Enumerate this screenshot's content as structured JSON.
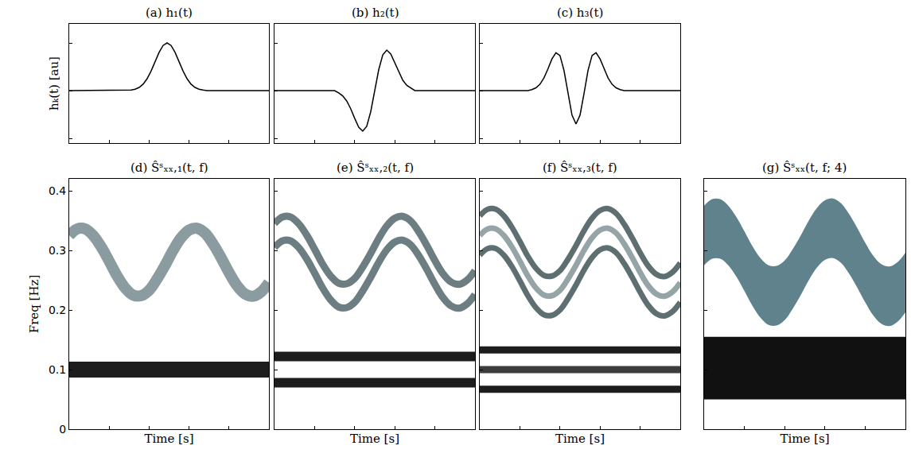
{
  "chart_data": [
    {
      "type": "line",
      "title": "(a) h₁(t)",
      "ylabel": "hₖ(t) [au]",
      "color": "#000000",
      "x": [
        0,
        29,
        31,
        33,
        35,
        37,
        39,
        41,
        43,
        45,
        47,
        49,
        51,
        53,
        55,
        57,
        59,
        61,
        63,
        65,
        67,
        69,
        100
      ],
      "values": [
        0,
        0,
        0.011,
        0.029,
        0.066,
        0.135,
        0.249,
        0.411,
        0.607,
        0.801,
        0.946,
        1,
        0.946,
        0.801,
        0.607,
        0.411,
        0.249,
        0.135,
        0.066,
        0.029,
        0.011,
        0,
        0
      ],
      "xlim": [
        0,
        100
      ],
      "ylim": [
        -1.1,
        1.4
      ],
      "xticks": [
        20,
        40,
        60,
        80
      ],
      "yticks": [
        -1,
        0,
        1
      ],
      "tick_labels": false,
      "grid": false
    },
    {
      "type": "line",
      "title": "(b) h₂(t)",
      "color": "#000000",
      "x": [
        0,
        30,
        32,
        34,
        36,
        38,
        40,
        42,
        44,
        46,
        48,
        50,
        52,
        54,
        56,
        58,
        60,
        62,
        64,
        66,
        68,
        70,
        100
      ],
      "values": [
        0,
        0,
        -0.047,
        -0.109,
        -0.216,
        -0.379,
        -0.581,
        -0.767,
        -0.849,
        -0.748,
        -0.441,
        0,
        0.441,
        0.748,
        0.849,
        0.767,
        0.581,
        0.379,
        0.216,
        0.109,
        0.047,
        0,
        0
      ],
      "xlim": [
        0,
        100
      ],
      "ylim": [
        -1.1,
        1.4
      ],
      "xticks": [
        20,
        40,
        60,
        80
      ],
      "yticks": [
        -1,
        0,
        1
      ],
      "tick_labels": false,
      "grid": false
    },
    {
      "type": "line",
      "title": "(c) h₃(t)",
      "color": "#000000",
      "x": [
        0,
        24,
        26,
        28,
        30,
        32,
        34,
        36,
        38,
        40,
        42,
        44,
        46,
        48,
        50,
        52,
        54,
        56,
        58,
        60,
        62,
        64,
        66,
        68,
        70,
        72,
        100
      ],
      "values": [
        0,
        0,
        0.022,
        0.058,
        0.132,
        0.264,
        0.455,
        0.663,
        0.794,
        0.735,
        0.425,
        -0.062,
        -0.515,
        -0.7,
        -0.515,
        -0.062,
        0.425,
        0.735,
        0.794,
        0.663,
        0.455,
        0.264,
        0.132,
        0.058,
        0.022,
        0,
        0
      ],
      "xlim": [
        0,
        100
      ],
      "ylim": [
        -1.1,
        1.4
      ],
      "xticks": [
        20,
        40,
        60,
        80
      ],
      "yticks": [
        -1,
        0,
        1
      ],
      "tick_labels": false,
      "grid": false
    },
    {
      "type": "spectrogram",
      "title": "(d) Ŝˢₓₓ,₁(t, f)",
      "xlabel": "Time [s]",
      "ylabel": "Freq [Hz]",
      "x": [
        0,
        4,
        8,
        12,
        16,
        20,
        24,
        28,
        32,
        36,
        40,
        44,
        48,
        52,
        56,
        60,
        64,
        68,
        72,
        76,
        80,
        84,
        88,
        92,
        96,
        100
      ],
      "levels": [
        {
          "value": 0.1,
          "color": "#111111"
        }
      ],
      "ridges": [
        {
          "color": "#7d9195",
          "values": [
            0.325,
            0.336,
            0.336,
            0.325,
            0.306,
            0.282,
            0.257,
            0.237,
            0.225,
            0.224,
            0.233,
            0.252,
            0.275,
            0.3,
            0.321,
            0.334,
            0.337,
            0.329,
            0.311,
            0.288,
            0.263,
            0.241,
            0.227,
            0.223,
            0.23,
            0.246
          ]
        }
      ],
      "xlim": [
        0,
        100
      ],
      "ylim": [
        0,
        0.42
      ],
      "xticks": [
        20,
        40,
        60,
        80
      ],
      "yticks": [
        0,
        0.1,
        0.2,
        0.3,
        0.4
      ],
      "tick_labels": "y",
      "grid": false
    },
    {
      "type": "spectrogram",
      "title": "(e) Ŝˢₓₓ,₂(t, f)",
      "xlabel": "Time [s]",
      "x": [
        0,
        4,
        8,
        12,
        16,
        20,
        24,
        28,
        32,
        36,
        40,
        44,
        48,
        52,
        56,
        60,
        64,
        68,
        72,
        76,
        80,
        84,
        88,
        92,
        96,
        100
      ],
      "levels": [
        {
          "value": 0.122,
          "color": "#111111"
        },
        {
          "value": 0.078,
          "color": "#111111"
        }
      ],
      "ridges": [
        {
          "color": "#5d7075",
          "values": [
            0.345,
            0.356,
            0.356,
            0.345,
            0.326,
            0.302,
            0.277,
            0.257,
            0.245,
            0.244,
            0.253,
            0.272,
            0.295,
            0.32,
            0.341,
            0.354,
            0.357,
            0.349,
            0.331,
            0.308,
            0.283,
            0.261,
            0.247,
            0.243,
            0.25,
            0.266
          ]
        },
        {
          "color": "#5d7075",
          "values": [
            0.305,
            0.316,
            0.316,
            0.305,
            0.286,
            0.262,
            0.237,
            0.217,
            0.205,
            0.204,
            0.213,
            0.232,
            0.255,
            0.28,
            0.301,
            0.314,
            0.317,
            0.309,
            0.291,
            0.268,
            0.243,
            0.221,
            0.207,
            0.203,
            0.21,
            0.226
          ]
        }
      ],
      "xlim": [
        0,
        100
      ],
      "ylim": [
        0,
        0.42
      ],
      "xticks": [
        20,
        40,
        60,
        80
      ],
      "yticks": [
        0,
        0.1,
        0.2,
        0.3,
        0.4
      ],
      "tick_labels": false,
      "grid": false
    },
    {
      "type": "spectrogram",
      "title": "(f) Ŝˢₓₓ,₃(t, f)",
      "xlabel": "Time [s]",
      "x": [
        0,
        4,
        8,
        12,
        16,
        20,
        24,
        28,
        32,
        36,
        40,
        44,
        48,
        52,
        56,
        60,
        64,
        68,
        72,
        76,
        80,
        84,
        88,
        92,
        96,
        100
      ],
      "levels": [
        {
          "value": 0.133,
          "color": "#111111"
        },
        {
          "value": 0.1,
          "color": "#333333"
        },
        {
          "value": 0.067,
          "color": "#111111"
        }
      ],
      "ridges": [
        {
          "color": "#4d5f63",
          "values": [
            0.358,
            0.369,
            0.369,
            0.358,
            0.339,
            0.315,
            0.29,
            0.27,
            0.258,
            0.257,
            0.266,
            0.285,
            0.308,
            0.333,
            0.354,
            0.367,
            0.37,
            0.362,
            0.344,
            0.321,
            0.296,
            0.274,
            0.26,
            0.256,
            0.263,
            0.279
          ]
        },
        {
          "color": "#8a9a9c",
          "values": [
            0.325,
            0.336,
            0.336,
            0.325,
            0.306,
            0.282,
            0.257,
            0.237,
            0.225,
            0.224,
            0.233,
            0.252,
            0.275,
            0.3,
            0.321,
            0.334,
            0.337,
            0.329,
            0.311,
            0.288,
            0.263,
            0.241,
            0.227,
            0.223,
            0.23,
            0.246
          ]
        },
        {
          "color": "#4d5f63",
          "values": [
            0.292,
            0.303,
            0.303,
            0.292,
            0.273,
            0.249,
            0.224,
            0.204,
            0.192,
            0.191,
            0.2,
            0.219,
            0.242,
            0.267,
            0.288,
            0.301,
            0.304,
            0.296,
            0.278,
            0.255,
            0.23,
            0.208,
            0.194,
            0.19,
            0.197,
            0.213
          ]
        }
      ],
      "xlim": [
        0,
        100
      ],
      "ylim": [
        0,
        0.42
      ],
      "xticks": [
        20,
        40,
        60,
        80
      ],
      "yticks": [
        0,
        0.1,
        0.2,
        0.3,
        0.4
      ],
      "tick_labels": false,
      "grid": false
    },
    {
      "type": "spectrogram",
      "title": "(g) Ŝˢₓₓ(t, f; 4)",
      "xlabel": "Time [s]",
      "x": [
        0,
        4,
        8,
        12,
        16,
        20,
        24,
        28,
        32,
        36,
        40,
        44,
        48,
        52,
        56,
        60,
        64,
        68,
        72,
        76,
        80,
        84,
        88,
        92,
        96,
        100
      ],
      "bands": [
        {
          "color": "#111111",
          "lower": 0.05,
          "upper": 0.155
        },
        {
          "color": "#5f828c",
          "lower": [
            0.275,
            0.286,
            0.286,
            0.275,
            0.256,
            0.232,
            0.207,
            0.187,
            0.175,
            0.174,
            0.183,
            0.202,
            0.225,
            0.25,
            0.271,
            0.284,
            0.287,
            0.279,
            0.261,
            0.238,
            0.213,
            0.191,
            0.177,
            0.173,
            0.18,
            0.196
          ],
          "upper": [
            0.375,
            0.386,
            0.386,
            0.375,
            0.356,
            0.332,
            0.307,
            0.287,
            0.275,
            0.274,
            0.283,
            0.302,
            0.325,
            0.35,
            0.371,
            0.384,
            0.387,
            0.379,
            0.361,
            0.338,
            0.313,
            0.291,
            0.277,
            0.273,
            0.28,
            0.296
          ]
        }
      ],
      "xlim": [
        0,
        100
      ],
      "ylim": [
        0,
        0.42
      ],
      "xticks": [
        20,
        40,
        60,
        80
      ],
      "yticks": [
        0,
        0.1,
        0.2,
        0.3,
        0.4
      ],
      "tick_labels": false,
      "grid": false
    }
  ]
}
